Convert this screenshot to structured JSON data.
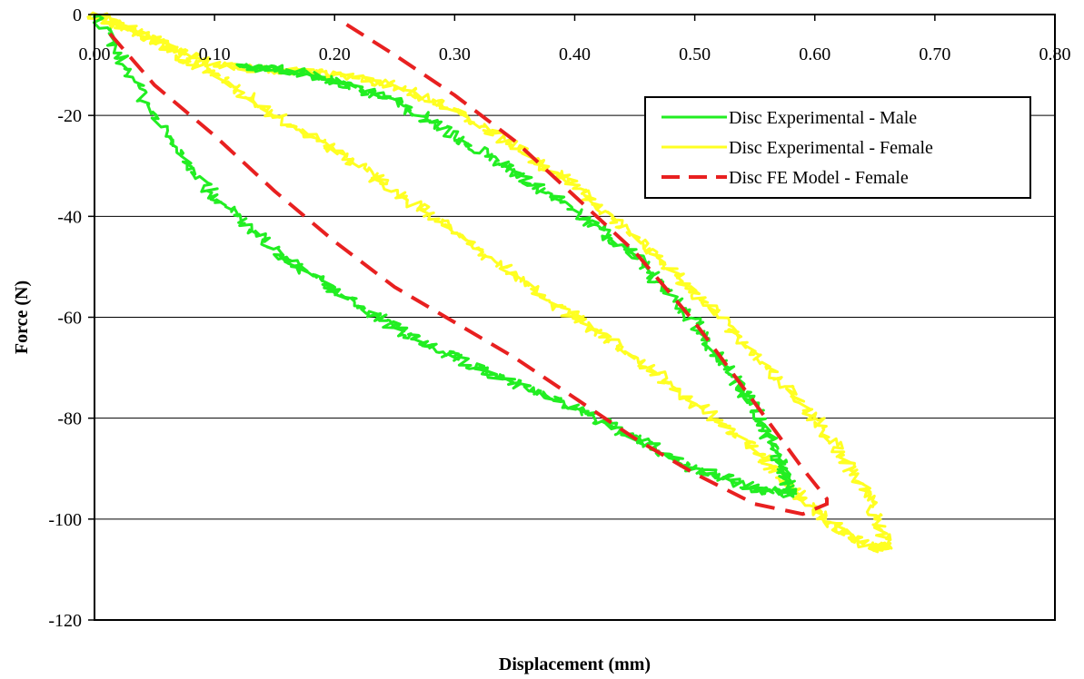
{
  "chart_data": {
    "type": "line",
    "title": "",
    "xlabel": "Displacement (mm)",
    "ylabel": "Force (N)",
    "xlim": [
      0,
      0.8
    ],
    "ylim": [
      -120,
      0
    ],
    "x_ticks": [
      "0.00",
      "0.10",
      "0.20",
      "0.30",
      "0.40",
      "0.50",
      "0.60",
      "0.70",
      "0.80"
    ],
    "y_ticks": [
      "0",
      "-20",
      "-40",
      "-60",
      "-80",
      "-100",
      "-120"
    ],
    "grid": "horizontal",
    "legend_position": "upper-right",
    "series": [
      {
        "name": "Disc Experimental - Male",
        "color": "#22ee22",
        "style": "noisy",
        "x": [
          0.0,
          0.05,
          0.1,
          0.15,
          0.2,
          0.25,
          0.3,
          0.35,
          0.4,
          0.45,
          0.5,
          0.55,
          0.58,
          0.57,
          0.55,
          0.52,
          0.49,
          0.45,
          0.4,
          0.35,
          0.3,
          0.25,
          0.2,
          0.16,
          0.12
        ],
        "y": [
          0,
          -20,
          -36,
          -47,
          -55,
          -62,
          -68,
          -73,
          -78,
          -84,
          -90,
          -94,
          -95,
          -88,
          -78,
          -68,
          -58,
          -48,
          -39,
          -31,
          -24,
          -17,
          -13,
          -11,
          -10
        ]
      },
      {
        "name": "Disc Experimental - Female",
        "color": "#ffff22",
        "style": "noisy",
        "x": [
          0.0,
          0.05,
          0.1,
          0.15,
          0.2,
          0.25,
          0.3,
          0.35,
          0.4,
          0.45,
          0.5,
          0.55,
          0.58,
          0.62,
          0.65,
          0.66,
          0.64,
          0.6,
          0.55,
          0.5,
          0.45,
          0.4,
          0.35,
          0.3,
          0.25,
          0.2,
          0.15,
          0.1,
          0.06,
          0.02,
          0.0
        ],
        "y": [
          0,
          -5,
          -12,
          -20,
          -27,
          -35,
          -43,
          -52,
          -60,
          -68,
          -77,
          -86,
          -94,
          -102,
          -106,
          -105,
          -93,
          -80,
          -67,
          -55,
          -44,
          -34,
          -26,
          -19,
          -14,
          -12,
          -11,
          -10,
          -6,
          -2,
          0
        ]
      },
      {
        "name": "Disc FE Model - Female",
        "color": "#e82020",
        "style": "dashed",
        "x": [
          0.21,
          0.25,
          0.3,
          0.35,
          0.4,
          0.45,
          0.5,
          0.55,
          0.59,
          0.61,
          0.61,
          0.59,
          0.55,
          0.5,
          0.45,
          0.4,
          0.35,
          0.3,
          0.25,
          0.2,
          0.15,
          0.1,
          0.05,
          0.01
        ],
        "y": [
          -2,
          -8,
          -16,
          -25,
          -36,
          -47,
          -61,
          -77,
          -90,
          -96,
          -97,
          -99,
          -97,
          -91,
          -84,
          -76,
          -68,
          -61,
          -54,
          -45,
          -35,
          -24,
          -14,
          -3
        ]
      }
    ]
  }
}
